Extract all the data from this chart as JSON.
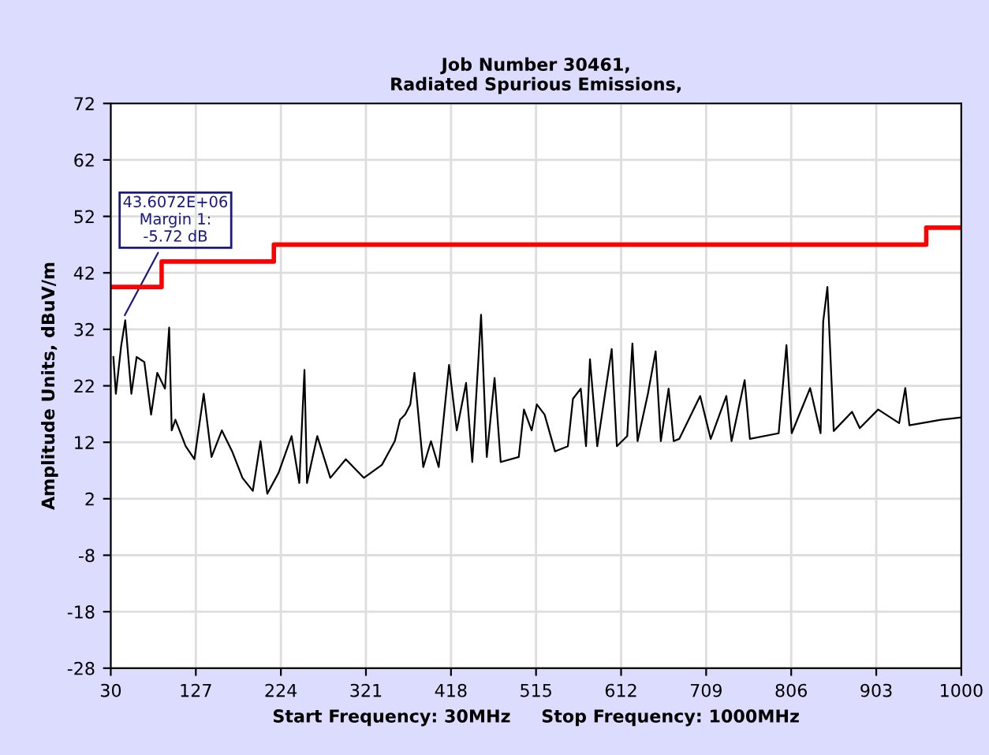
{
  "chart_data": {
    "type": "line",
    "title": "Job Number 30461,\nRadiated Spurious Emissions,",
    "xlabel": "Start Frequency: 30MHz     Stop Frequency: 1000MHz",
    "ylabel": "Amplitude Units, dBuV/m",
    "xlim": [
      30,
      1000
    ],
    "xticks": [
      30,
      127,
      224,
      321,
      418,
      515,
      612,
      709,
      806,
      903,
      1000
    ],
    "ylim": [
      -28,
      72
    ],
    "yticks": [
      -28,
      -18,
      -8,
      2,
      12,
      22,
      32,
      42,
      52,
      62,
      72
    ],
    "grid": true,
    "series": [
      {
        "color": "#000000",
        "x": [
          33,
          35.8,
          41.8,
          46.5,
          53.5,
          59.5,
          68.3,
          76,
          83,
          91.8,
          96.6,
          99.5,
          103.7,
          115.4,
          125.4,
          136,
          144.9,
          156.7,
          168.4,
          180.2,
          192,
          200.8,
          208.5,
          221.4,
          236.2,
          245,
          250.9,
          253.8,
          265.5,
          280.4,
          298,
          318.6,
          339.2,
          353.9,
          359.9,
          365.7,
          371.6,
          376.3,
          386.4,
          395.2,
          404,
          415.8,
          424.6,
          435.2,
          442.3,
          452.3,
          458.8,
          467.7,
          474.7,
          495.3,
          501.2,
          510,
          515.9,
          524.8,
          536.6,
          551.3,
          557.1,
          566,
          572,
          576.5,
          584.8,
          601.3,
          607.2,
          619,
          624.9,
          630.8,
          642.6,
          651.4,
          657.3,
          666.2,
          672,
          678.3,
          702.2,
          714.2,
          732,
          738,
          752.9,
          758.9,
          791.7,
          800.6,
          806.6,
          827.6,
          839.5,
          842.5,
          847.3,
          854.5,
          875.4,
          884.2,
          905.2,
          929.1,
          936.1,
          940.8,
          976.8,
          1000
        ],
        "values": [
          27.1,
          20.6,
          29,
          33.6,
          20.6,
          27.1,
          26.2,
          16.9,
          24.3,
          21.5,
          32.3,
          14.1,
          16,
          11.3,
          9,
          20.6,
          9.4,
          14.1,
          10.4,
          5.7,
          3.4,
          12.2,
          2.9,
          6.6,
          13.1,
          4.8,
          24.8,
          4.8,
          13.1,
          5.7,
          9,
          5.7,
          8,
          12.2,
          16,
          16.9,
          18.7,
          24.3,
          7.6,
          12.2,
          7.6,
          25.7,
          14.1,
          22.5,
          8.5,
          34.6,
          9.4,
          23.4,
          8.5,
          9.4,
          17.8,
          14.1,
          18.7,
          16.9,
          10.4,
          11.3,
          19.7,
          21.5,
          11.3,
          26.7,
          11.3,
          28.5,
          11.3,
          13.1,
          29.5,
          12.2,
          20.6,
          28.1,
          12.2,
          21.5,
          12.2,
          12.6,
          20.2,
          12.6,
          20.2,
          12.2,
          23,
          12.6,
          13.6,
          29.2,
          13.6,
          21.6,
          13.6,
          33.4,
          39.5,
          14,
          17.4,
          14.5,
          17.8,
          15.4,
          21.6,
          15,
          16,
          16.4
        ]
      },
      {
        "type": "step",
        "color": "#ff0000",
        "x": [
          30,
          88,
          216,
          960,
          1000
        ],
        "values": [
          39.5,
          44,
          47,
          50,
          50
        ]
      }
    ],
    "annotations": [
      {
        "text": "43.6072E+06\nMargin 1:\n-5.72 dB",
        "x": 43.6,
        "y": 33.8
      }
    ]
  }
}
